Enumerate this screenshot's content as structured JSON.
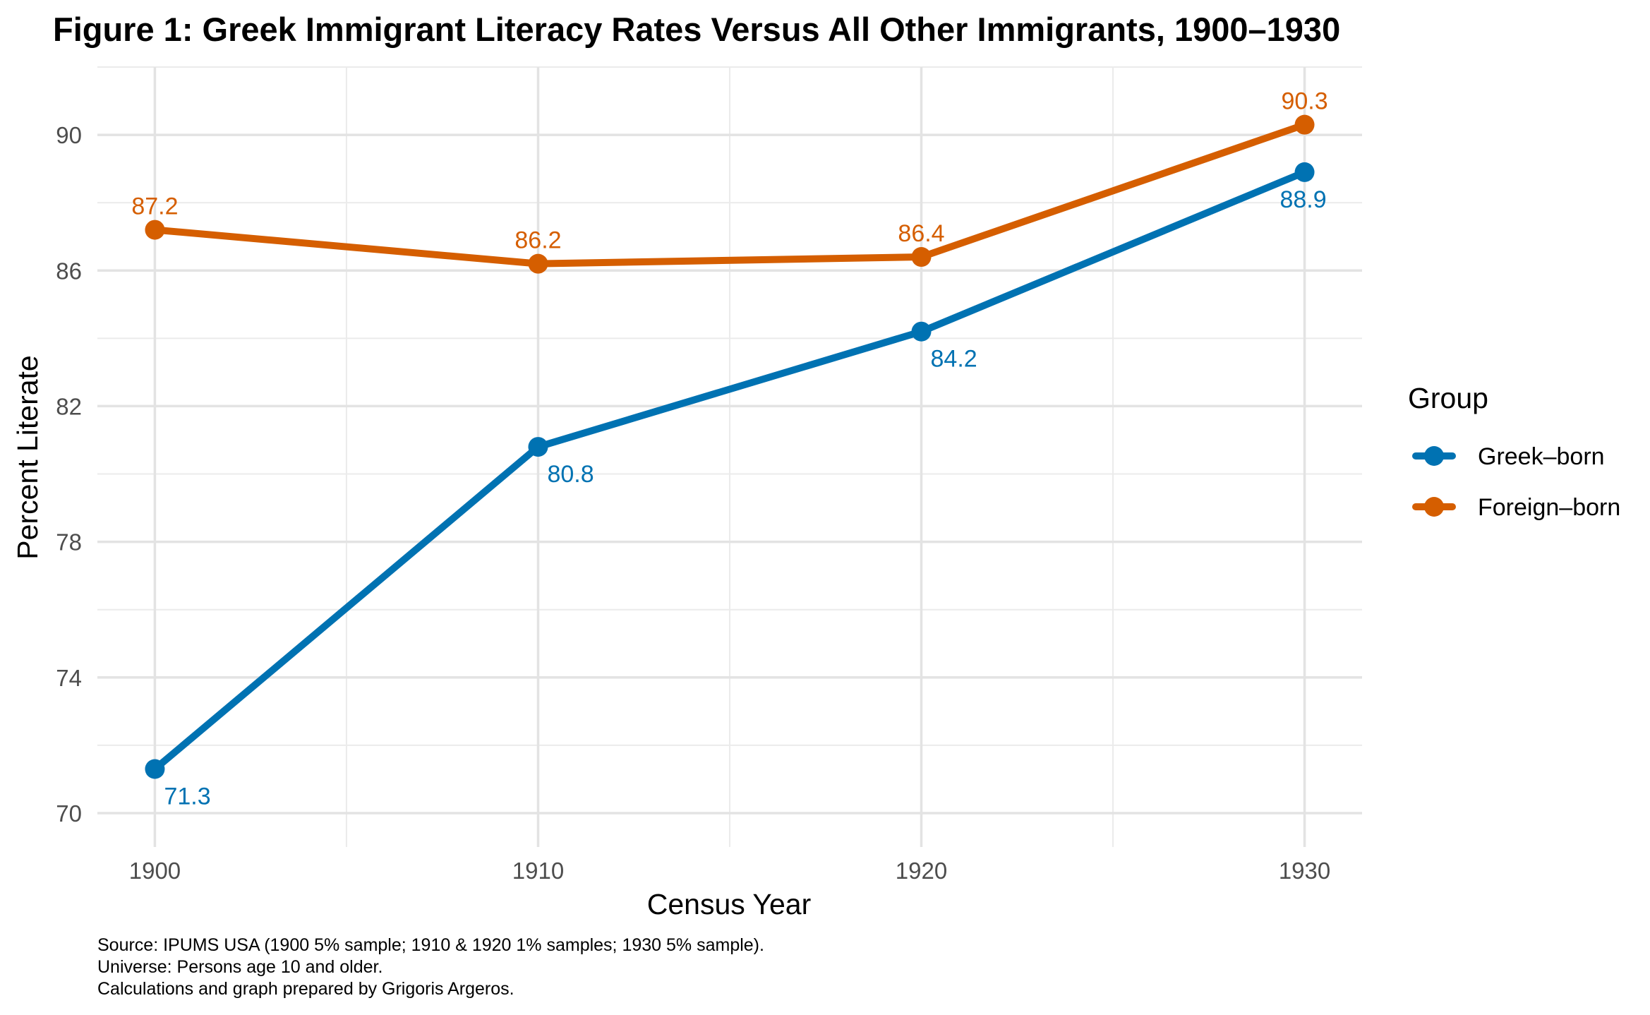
{
  "chart_data": {
    "type": "line",
    "title": "Figure 1: Greek Immigrant Literacy Rates Versus All Other Immigrants, 1900–1930",
    "xlabel": "Census Year",
    "ylabel": "Percent Literate",
    "x": [
      1900,
      1910,
      1920,
      1930
    ],
    "x_tick_labels": [
      "1900",
      "1910",
      "1920",
      "1930"
    ],
    "y_tick_values": [
      70,
      74,
      78,
      82,
      86,
      90
    ],
    "y_tick_labels": [
      "70",
      "74",
      "78",
      "82",
      "86",
      "90"
    ],
    "xlim": [
      1898.5,
      1931.5
    ],
    "ylim": [
      69,
      92
    ],
    "grid": true,
    "legend_title": "Group",
    "legend_position": "right",
    "series": [
      {
        "name": "Greek–born",
        "color": "#0072B2",
        "values": [
          71.3,
          80.8,
          84.2,
          88.9
        ],
        "labels": [
          "71.3",
          "80.8",
          "84.2",
          "88.9"
        ]
      },
      {
        "name": "Foreign–born",
        "color": "#D55E00",
        "values": [
          87.2,
          86.2,
          86.4,
          90.3
        ],
        "labels": [
          "87.2",
          "86.2",
          "86.4",
          "90.3"
        ]
      }
    ],
    "caption": [
      "Source: IPUMS USA (1900 5% sample; 1910 & 1920 1% samples; 1930 5% sample).",
      "Universe: Persons age 10 and older.",
      "Calculations and graph prepared by Grigoris Argeros."
    ]
  }
}
